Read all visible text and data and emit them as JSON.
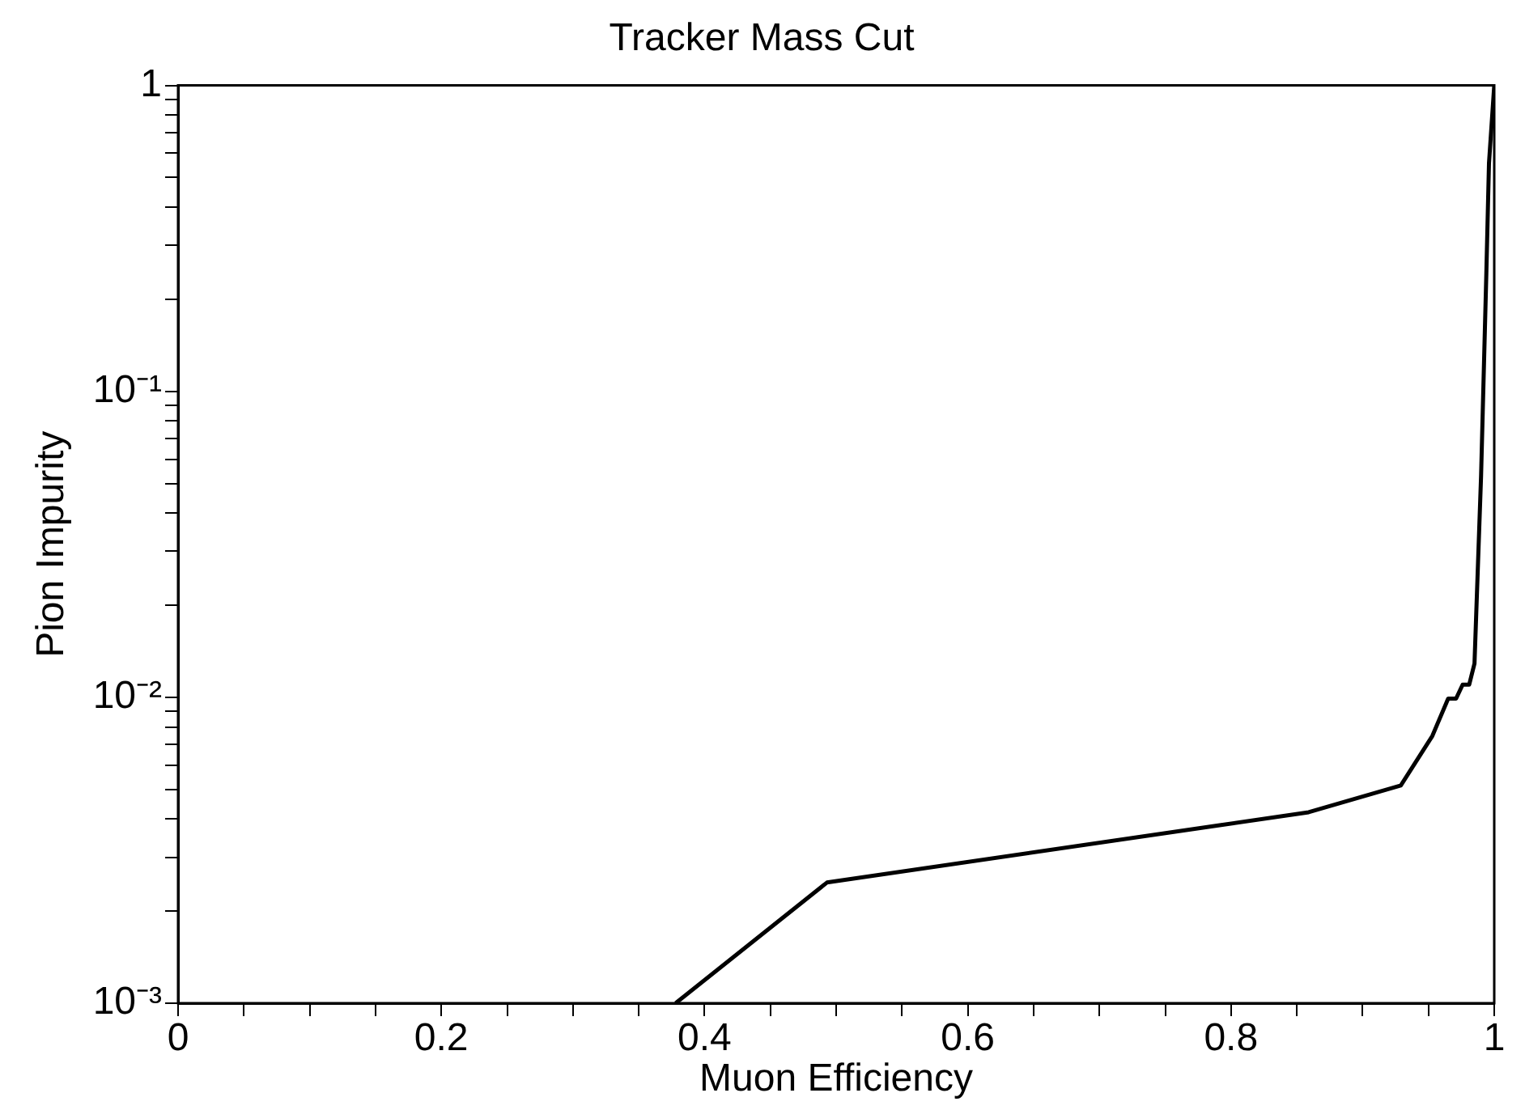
{
  "chart_data": {
    "type": "line",
    "title": "Tracker Mass Cut",
    "xlabel": "Muon Efficiency",
    "ylabel": "Pion Impurity",
    "x": [
      0.378,
      0.493,
      0.859,
      0.929,
      0.953,
      0.965,
      0.971,
      0.976,
      0.981,
      0.985,
      0.99,
      0.994,
      0.996,
      1.0
    ],
    "series": [
      {
        "color": "#000000",
        "values": [
          0.001,
          0.00248,
          0.00421,
          0.00515,
          0.00748,
          0.0099,
          0.0099,
          0.011,
          0.011,
          0.0129,
          0.053,
          0.243,
          0.556,
          1
        ]
      }
    ],
    "xlim": [
      0,
      1
    ],
    "ylim": [
      0.001,
      1
    ],
    "log": true,
    "grid": false,
    "legend": false,
    "marker": "none",
    "line_style": "solid",
    "xticks": [
      0,
      {
        "value": 0.05,
        "label": null
      },
      {
        "value": 0.1,
        "label": null
      },
      {
        "value": 0.15,
        "label": null
      },
      0.2,
      {
        "value": 0.25,
        "label": null
      },
      {
        "value": 0.3,
        "label": null
      },
      {
        "value": 0.35,
        "label": null
      },
      0.4,
      {
        "value": 0.45,
        "label": null
      },
      {
        "value": 0.5,
        "label": null
      },
      {
        "value": 0.55,
        "label": null
      },
      0.6,
      {
        "value": 0.65,
        "label": null
      },
      {
        "value": 0.7,
        "label": null
      },
      {
        "value": 0.75,
        "label": null
      },
      0.8,
      {
        "value": 0.85,
        "label": null
      },
      {
        "value": 0.9,
        "label": null
      },
      {
        "value": 0.95,
        "label": null
      },
      1
    ],
    "yticks": [
      {
        "value": 0.001,
        "label": "10⁻³"
      },
      {
        "value": 0.002,
        "label": null
      },
      {
        "value": 0.003,
        "label": null
      },
      {
        "value": 0.004,
        "label": null
      },
      {
        "value": 0.005,
        "label": null
      },
      {
        "value": 0.006,
        "label": null
      },
      {
        "value": 0.007,
        "label": null
      },
      {
        "value": 0.008,
        "label": null
      },
      {
        "value": 0.009,
        "label": null
      },
      {
        "value": 0.01,
        "label": "10⁻²"
      },
      {
        "value": 0.02,
        "label": null
      },
      {
        "value": 0.03,
        "label": null
      },
      {
        "value": 0.04,
        "label": null
      },
      {
        "value": 0.05,
        "label": null
      },
      {
        "value": 0.06,
        "label": null
      },
      {
        "value": 0.07,
        "label": null
      },
      {
        "value": 0.08,
        "label": null
      },
      {
        "value": 0.09,
        "label": null
      },
      {
        "value": 0.1,
        "label": "10⁻¹"
      },
      {
        "value": 0.2,
        "label": null
      },
      {
        "value": 0.3,
        "label": null
      },
      {
        "value": 0.4,
        "label": null
      },
      {
        "value": 0.5,
        "label": null
      },
      {
        "value": 0.6,
        "label": null
      },
      {
        "value": 0.7,
        "label": null
      },
      {
        "value": 0.8,
        "label": null
      },
      {
        "value": 0.9,
        "label": null
      },
      1
    ]
  }
}
